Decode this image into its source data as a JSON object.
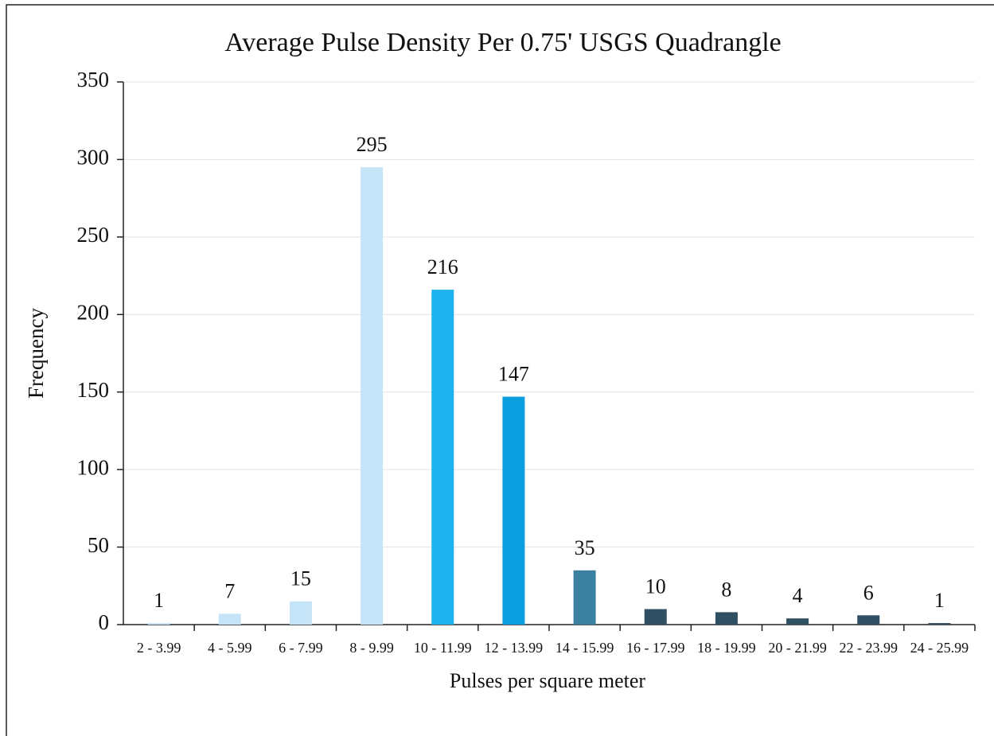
{
  "chart_data": {
    "type": "bar",
    "title": "Average Pulse Density Per 0.75' USGS Quadrangle",
    "xlabel": "Pulses per square meter",
    "ylabel": "Frequency",
    "categories": [
      "2 - 3.99",
      "4 - 5.99",
      "6 - 7.99",
      "8 - 9.99",
      "10 - 11.99",
      "12 - 13.99",
      "14 - 15.99",
      "16 - 17.99",
      "18 - 19.99",
      "20 - 21.99",
      "22 - 23.99",
      "24 - 25.99"
    ],
    "values": [
      1,
      7,
      15,
      295,
      216,
      147,
      35,
      10,
      8,
      4,
      6,
      1
    ],
    "colors": [
      "#c6e4f7",
      "#c6e4f7",
      "#c6e4f7",
      "#c6e4f7",
      "#1eb3ef",
      "#0b9fe0",
      "#3b7fa1",
      "#2f4f63",
      "#2f4f63",
      "#2f4f63",
      "#2f4f63",
      "#2f4f63"
    ],
    "ylim": [
      0,
      350
    ],
    "yticks": [
      0,
      50,
      100,
      150,
      200,
      250,
      300,
      350
    ],
    "grid": true
  }
}
